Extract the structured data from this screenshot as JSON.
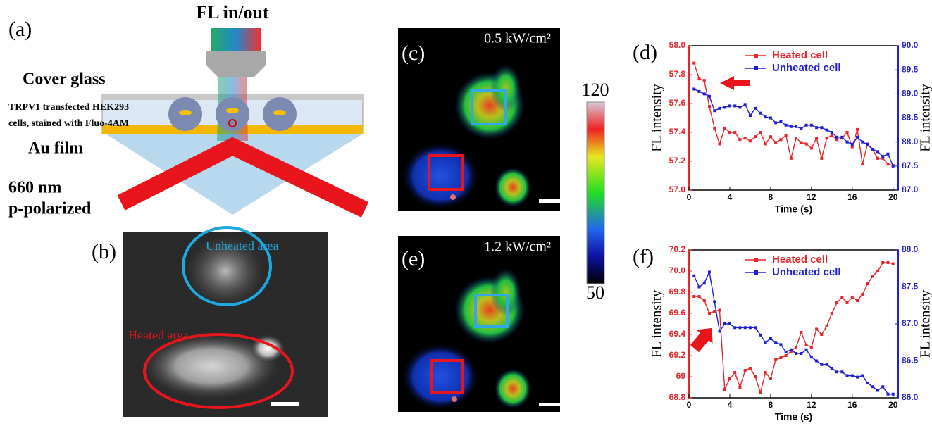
{
  "figure": {
    "a": {
      "label": "(a)",
      "beam": "FL in/out",
      "glass": "Cover glass",
      "cells1": "TRPV1 transfected HEK293",
      "cells2": "cells, stained with Fluo-4AM",
      "film": "Au film",
      "wave": "660 nm",
      "pol": "p-polarized"
    },
    "b": {
      "label": "(b)",
      "unheated": "Unheated area",
      "heated": "Heated area"
    },
    "c": {
      "label": "(c)",
      "power": "0.5 kW/cm²"
    },
    "e": {
      "label": "(e)",
      "power": "1.2 kW/cm²"
    },
    "colorbar": {
      "max": 120,
      "min": 50
    }
  },
  "chart_data": [
    {
      "type": "line",
      "label": "(d)",
      "xlabel": "Time (s)",
      "ylabel": "FL intensity",
      "y2label": "FL intensity",
      "x": [
        0.5,
        1,
        1.5,
        2,
        2.5,
        3,
        3.5,
        4,
        4.5,
        5,
        5.5,
        6,
        6.5,
        7,
        7.5,
        8,
        8.5,
        9,
        9.5,
        10,
        10.5,
        11,
        11.5,
        12,
        12.5,
        13,
        13.5,
        14,
        14.5,
        15,
        15.5,
        16,
        16.5,
        17,
        17.5,
        18,
        18.5,
        19,
        19.5,
        20
      ],
      "xlim": [
        0,
        20.5
      ],
      "xticks": [
        0,
        4,
        8,
        12,
        16,
        20
      ],
      "ylim": [
        57,
        58
      ],
      "yticks": [
        {
          "value": 57,
          "label": "57.0"
        },
        57.2,
        57.4,
        57.6,
        57.8,
        {
          "value": 58,
          "label": "58.0"
        }
      ],
      "y2lim": [
        87,
        90
      ],
      "y2ticks": [
        {
          "value": 87,
          "label": "87.0"
        },
        87.5,
        {
          "value": 88,
          "label": "88.0"
        },
        88.5,
        {
          "value": 89,
          "label": "89.0"
        },
        89.5,
        {
          "value": 90,
          "label": "90.0"
        }
      ],
      "series": [
        {
          "name": "Heated cell",
          "color": "#e8262a",
          "axis": "y",
          "values": [
            57.88,
            57.77,
            57.76,
            57.58,
            57.43,
            57.32,
            57.43,
            57.4,
            57.4,
            57.35,
            57.36,
            57.34,
            57.37,
            57.4,
            57.32,
            57.37,
            57.33,
            57.35,
            57.38,
            57.22,
            57.36,
            57.33,
            57.32,
            57.29,
            57.36,
            57.22,
            57.36,
            57.38,
            57.35,
            57.36,
            57.4,
            57.3,
            57.42,
            57.18,
            57.32,
            57.28,
            57.22,
            57.22,
            57.18,
            57.17
          ]
        },
        {
          "name": "Unheated cell",
          "color": "#1f1fd6",
          "axis": "y2",
          "values": [
            89.1,
            89.05,
            89.0,
            88.95,
            88.65,
            88.7,
            88.72,
            88.75,
            88.75,
            88.72,
            88.78,
            88.55,
            88.7,
            88.6,
            88.52,
            88.5,
            88.4,
            88.42,
            88.35,
            88.32,
            88.32,
            88.28,
            88.35,
            88.35,
            88.3,
            88.3,
            88.25,
            88.2,
            88.1,
            88.1,
            88.0,
            87.95,
            88.1,
            88.0,
            87.95,
            87.85,
            87.8,
            87.7,
            87.75,
            87.5
          ]
        }
      ]
    },
    {
      "type": "line",
      "label": "(f)",
      "xlabel": "Time (s)",
      "ylabel": "FL intensity",
      "y2label": "FL intensity",
      "x": [
        0.5,
        1,
        1.5,
        2,
        2.5,
        3,
        3.5,
        4,
        4.5,
        5,
        5.5,
        6,
        6.5,
        7,
        7.5,
        8,
        8.5,
        9,
        9.5,
        10,
        10.5,
        11,
        11.5,
        12,
        12.5,
        13,
        13.5,
        14,
        14.5,
        15,
        15.5,
        16,
        16.5,
        17,
        17.5,
        18,
        18.5,
        19,
        19.5,
        20
      ],
      "xlim": [
        0,
        20.5
      ],
      "xticks": [
        0,
        4,
        8,
        12,
        16,
        20
      ],
      "ylim": [
        68.8,
        70.2
      ],
      "yticks": [
        68.8,
        69,
        69.2,
        69.4,
        69.6,
        69.8,
        {
          "value": 70,
          "label": "70.0"
        },
        70.2
      ],
      "y2lim": [
        86,
        88
      ],
      "y2ticks": [
        {
          "value": 86,
          "label": "86.0"
        },
        86.5,
        {
          "value": 87,
          "label": "87.0"
        },
        87.5,
        {
          "value": 88,
          "label": "88.0"
        }
      ],
      "series": [
        {
          "name": "Heated cell",
          "color": "#e8262a",
          "axis": "y",
          "values": [
            69.76,
            69.76,
            69.72,
            69.6,
            69.62,
            69.63,
            68.88,
            68.98,
            69.04,
            68.9,
            69.06,
            69.08,
            69.0,
            68.85,
            69.04,
            68.98,
            69.16,
            69.18,
            69.2,
            69.24,
            69.28,
            69.42,
            69.3,
            69.28,
            69.45,
            69.4,
            69.48,
            69.6,
            69.7,
            69.75,
            69.7,
            69.75,
            69.72,
            69.78,
            69.88,
            69.95,
            70.0,
            70.08,
            70.08,
            70.07
          ]
        },
        {
          "name": "Unheated cell",
          "color": "#1f1fd6",
          "axis": "y2",
          "values": [
            87.65,
            87.5,
            87.55,
            87.7,
            87.3,
            86.9,
            87.0,
            87.0,
            86.95,
            86.95,
            86.95,
            86.95,
            86.95,
            86.85,
            86.75,
            86.8,
            86.75,
            86.72,
            86.62,
            86.65,
            86.6,
            86.6,
            86.65,
            86.55,
            86.5,
            86.45,
            86.45,
            86.4,
            86.35,
            86.35,
            86.3,
            86.3,
            86.28,
            86.3,
            86.2,
            86.15,
            86.1,
            86.15,
            86.05,
            86.05
          ]
        }
      ]
    }
  ]
}
